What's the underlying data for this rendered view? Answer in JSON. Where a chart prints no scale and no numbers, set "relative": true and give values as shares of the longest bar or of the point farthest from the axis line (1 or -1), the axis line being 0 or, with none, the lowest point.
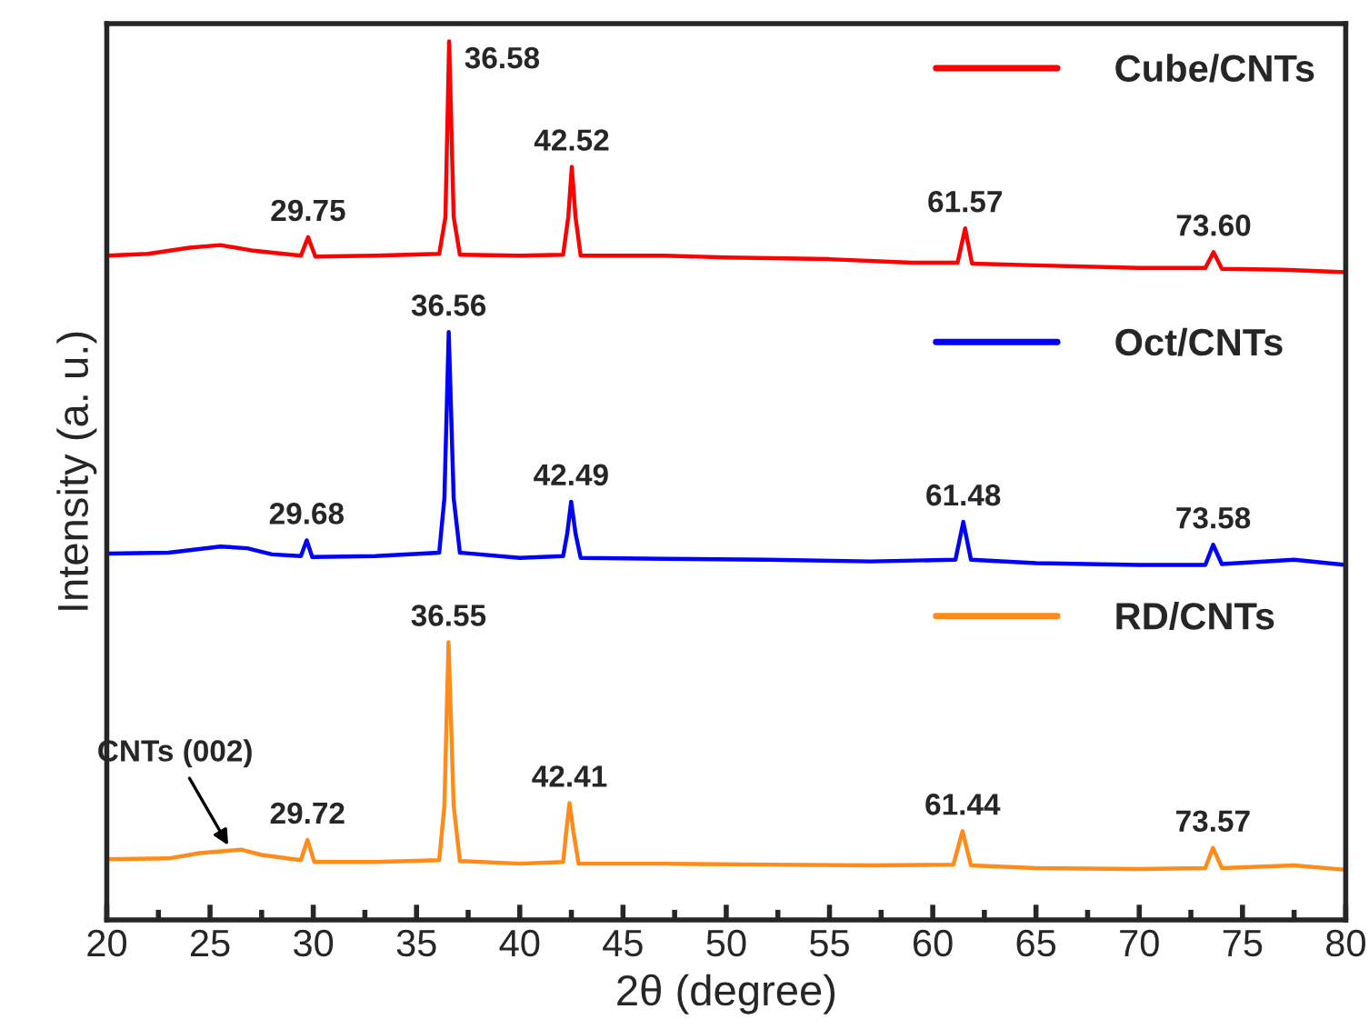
{
  "chart_data": {
    "type": "line",
    "relative": true,
    "xlabel": "2θ (degree)",
    "ylabel": "Intensity (a. u.)",
    "xlim": [
      20,
      80
    ],
    "xticks": [
      20,
      25,
      30,
      35,
      40,
      45,
      50,
      55,
      60,
      65,
      70,
      75,
      80
    ],
    "tick_labels": "x",
    "grid": false,
    "legend": "top right",
    "marker": "none",
    "line_style": "solid",
    "series": [
      {
        "name": "Cube/CNTs",
        "color": "#ff0000",
        "x": [
          20,
          22,
          24,
          25.5,
          27,
          29.4,
          29.75,
          30.1,
          33,
          36.1,
          36.4,
          36.58,
          36.8,
          37.1,
          40,
          42.1,
          42.35,
          42.52,
          42.7,
          42.95,
          47,
          50,
          55,
          59,
          61.2,
          61.57,
          61.9,
          65,
          70,
          73.2,
          73.6,
          74,
          77,
          80
        ],
        "values": [
          0.756,
          0.758,
          0.765,
          0.768,
          0.762,
          0.756,
          0.777,
          0.755,
          0.756,
          0.758,
          0.8,
          1.0,
          0.8,
          0.757,
          0.756,
          0.757,
          0.8,
          0.857,
          0.8,
          0.756,
          0.756,
          0.754,
          0.752,
          0.748,
          0.748,
          0.787,
          0.747,
          0.745,
          0.742,
          0.742,
          0.76,
          0.741,
          0.74,
          0.737
        ]
      },
      {
        "name": "Oct/CNTs",
        "color": "#0000ff",
        "x": [
          20,
          23,
          25.5,
          26.8,
          28,
          29.4,
          29.68,
          29.95,
          33,
          36.1,
          36.35,
          36.56,
          36.8,
          37.1,
          40,
          42.1,
          42.3,
          42.49,
          42.7,
          42.95,
          47,
          52,
          57,
          61.1,
          61.48,
          61.85,
          65,
          70,
          73.2,
          73.58,
          74,
          77.5,
          80
        ],
        "values": [
          0.417,
          0.418,
          0.425,
          0.423,
          0.416,
          0.414,
          0.432,
          0.413,
          0.414,
          0.418,
          0.48,
          0.669,
          0.48,
          0.418,
          0.412,
          0.414,
          0.44,
          0.476,
          0.44,
          0.412,
          0.411,
          0.41,
          0.408,
          0.41,
          0.453,
          0.41,
          0.406,
          0.404,
          0.404,
          0.427,
          0.405,
          0.41,
          0.404
        ]
      },
      {
        "name": "RD/CNTs",
        "color": "#ff8c1a",
        "x": [
          20,
          23,
          24.5,
          26.5,
          27.5,
          29.4,
          29.72,
          30.05,
          33,
          36.1,
          36.35,
          36.55,
          36.8,
          37.1,
          40,
          42.1,
          42.25,
          42.41,
          42.6,
          42.85,
          47,
          52,
          57,
          61.0,
          61.44,
          61.85,
          65,
          70,
          73.2,
          73.57,
          74,
          77.5,
          80
        ],
        "values": [
          0.069,
          0.07,
          0.076,
          0.08,
          0.074,
          0.068,
          0.091,
          0.066,
          0.066,
          0.068,
          0.13,
          0.316,
          0.13,
          0.067,
          0.064,
          0.066,
          0.1,
          0.133,
          0.1,
          0.064,
          0.064,
          0.063,
          0.062,
          0.063,
          0.101,
          0.062,
          0.059,
          0.058,
          0.059,
          0.082,
          0.059,
          0.062,
          0.057
        ]
      }
    ],
    "annotations": [
      {
        "text": "36.58",
        "x": 36.58,
        "y": 1.0
      },
      {
        "text": "42.52",
        "x": 42.52,
        "y": 0.857
      },
      {
        "text": "29.75",
        "x": 29.75,
        "y": 0.777
      },
      {
        "text": "61.57",
        "x": 61.57,
        "y": 0.787
      },
      {
        "text": "73.60",
        "x": 73.6,
        "y": 0.76
      },
      {
        "text": "36.56",
        "x": 36.56,
        "y": 0.669
      },
      {
        "text": "42.49",
        "x": 42.49,
        "y": 0.476
      },
      {
        "text": "29.68",
        "x": 29.68,
        "y": 0.432
      },
      {
        "text": "61.48",
        "x": 61.48,
        "y": 0.453
      },
      {
        "text": "73.58",
        "x": 73.58,
        "y": 0.427
      },
      {
        "text": "36.55",
        "x": 36.55,
        "y": 0.316
      },
      {
        "text": "42.41",
        "x": 42.41,
        "y": 0.133
      },
      {
        "text": "29.72",
        "x": 29.72,
        "y": 0.091
      },
      {
        "text": "61.44",
        "x": 61.44,
        "y": 0.101
      },
      {
        "text": "73.57",
        "x": 73.57,
        "y": 0.082
      },
      {
        "text": "CNTs (002)",
        "x": 26,
        "y": 0.08
      }
    ]
  }
}
